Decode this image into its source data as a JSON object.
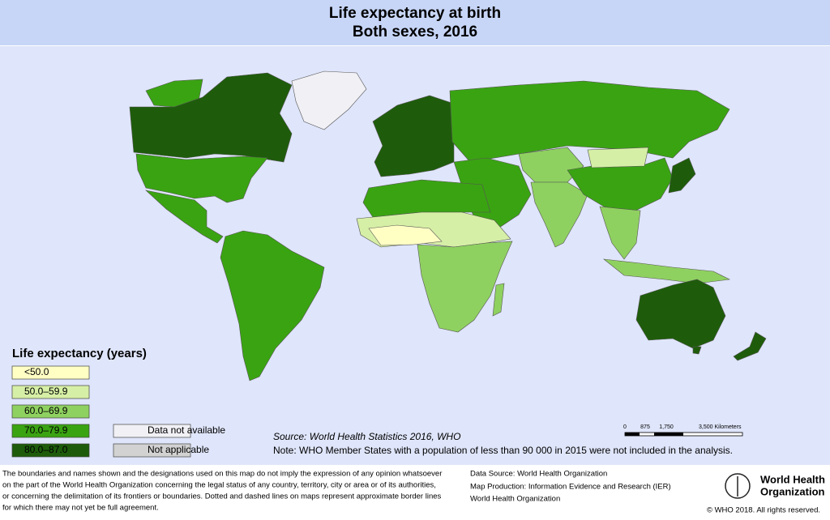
{
  "header": {
    "title": "Life expectancy at birth",
    "subtitle": "Both sexes, 2016"
  },
  "legend": {
    "title": "Life expectancy (years)",
    "items": [
      {
        "label": "<50.0",
        "color": "#ffffc4"
      },
      {
        "label": "50.0–59.9",
        "color": "#d6efa6"
      },
      {
        "label": "60.0–69.9",
        "color": "#8fd160"
      },
      {
        "label": "70.0–79.9",
        "color": "#3aa312"
      },
      {
        "label": "80.0–87.0",
        "color": "#1e5c0b"
      }
    ],
    "extra": [
      {
        "label": "Data not available",
        "color": "#f0f0f5"
      },
      {
        "label": "Not applicable",
        "color": "#d2d2d2"
      }
    ]
  },
  "source": "Source: World Health Statistics 2016, WHO",
  "note": "Note: WHO Member States with a population of less than 90 000 in 2015 were not included in the analysis.",
  "scale_bar": [
    "0",
    "875",
    "1,750",
    "3,500 Kilometers"
  ],
  "disclaimer": [
    "The boundaries and names shown and the designations used on this map do not imply the expression of any opinion whatsoever",
    "on the part of the World Health Organization concerning the legal status of any country, territory, city or area or of its authorities,",
    "or concerning the delimitation of its frontiers or boundaries. Dotted and dashed lines on maps represent approximate border lines",
    "for which there may not yet be full agreement."
  ],
  "credits": [
    "Data Source: World Health Organization",
    "Map Production: Information Evidence and Research (IER)",
    "World Health Organization"
  ],
  "logo": [
    "World Health",
    "Organization"
  ],
  "copyright": "© WHO 2018. All rights reserved."
}
